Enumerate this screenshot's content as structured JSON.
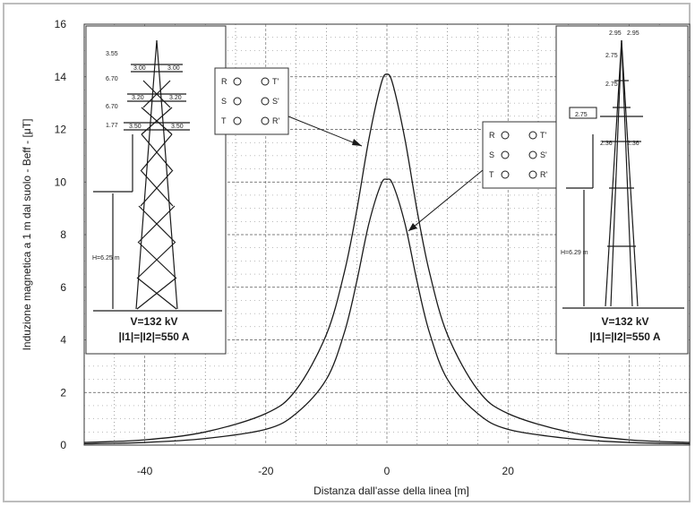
{
  "chart_data": {
    "type": "line",
    "xlabel": "Distanza dall'asse della linea [m]",
    "ylabel": "Induzione magnetica a 1 m dal suolo - Beff - [μT]",
    "xlim": [
      -50,
      50
    ],
    "ylim": [
      0,
      16
    ],
    "x_ticks": [
      "-40",
      "-20",
      "0",
      "20"
    ],
    "y_ticks": [
      "0",
      "2",
      "4",
      "6",
      "8",
      "10",
      "12",
      "14",
      "16"
    ],
    "x_tick_values": [
      -40,
      -20,
      0,
      20
    ],
    "y_tick_values": [
      0,
      2,
      4,
      6,
      8,
      10,
      12,
      14,
      16
    ],
    "grid": true,
    "x": [
      -50,
      -40,
      -30,
      -20,
      -15,
      -10,
      -7,
      -5,
      -3,
      -1,
      0,
      1,
      3,
      5,
      7,
      10,
      15,
      20,
      30,
      40,
      50
    ],
    "series": [
      {
        "values": [
          0.1,
          0.2,
          0.5,
          1.2,
          2.1,
          4.2,
          6.6,
          8.9,
          11.6,
          13.7,
          14.1,
          13.7,
          11.6,
          8.9,
          6.6,
          4.2,
          2.1,
          1.2,
          0.5,
          0.2,
          0.1
        ]
      },
      {
        "values": [
          0.05,
          0.1,
          0.25,
          0.6,
          1.2,
          2.5,
          4.3,
          6.2,
          8.4,
          9.9,
          10.1,
          9.9,
          8.4,
          6.2,
          4.3,
          2.5,
          1.2,
          0.6,
          0.25,
          0.1,
          0.05
        ]
      }
    ]
  },
  "panels": {
    "left": {
      "voltage": "V=132 kV",
      "current": "|I1|=|I2|=550 A",
      "height": "H=6.25 m",
      "dims": [
        "3.55",
        "6.70",
        "6.70",
        "1.77",
        "3.00",
        "3.00",
        "3.20",
        "3.20",
        "3.50",
        "3.50"
      ]
    },
    "right": {
      "voltage": "V=132 kV",
      "current": "|I1|=|I2|=550 A",
      "height": "H=6.29 m",
      "dims": [
        "2.95",
        "2.95",
        "2.75",
        "2.75",
        "2.75",
        "2.36",
        "2.36"
      ]
    }
  },
  "phase_boxes": [
    {
      "rows": [
        [
          "R",
          "T'"
        ],
        [
          "S",
          "S'"
        ],
        [
          "T",
          "R'"
        ]
      ]
    },
    {
      "rows": [
        [
          "R",
          "T'"
        ],
        [
          "S",
          "S'"
        ],
        [
          "T",
          "R'"
        ]
      ]
    }
  ]
}
